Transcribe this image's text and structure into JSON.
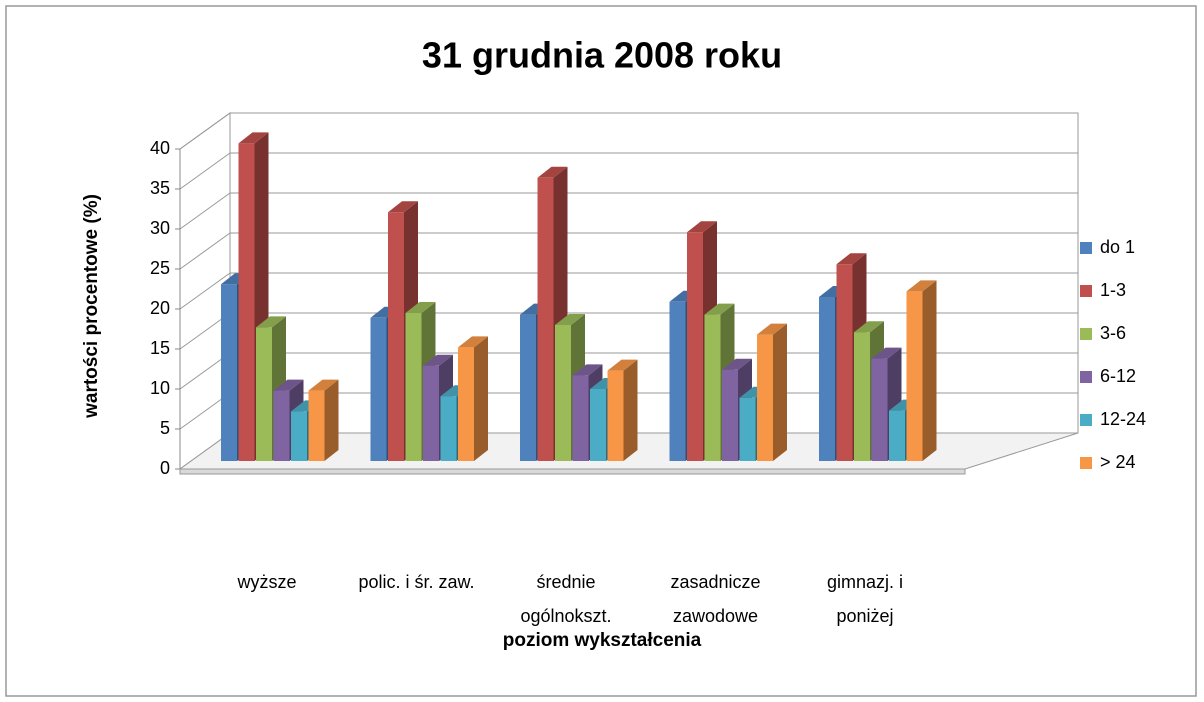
{
  "chart_data": {
    "type": "bar3d",
    "title": "31 grudnia 2008 roku",
    "x_label": "poziom wykształcenia",
    "y_label": "wartości procentowe (%)",
    "categories": [
      "wyższe",
      "polic. i śr. zaw.",
      "średnie ogólnokszt.",
      "zasadnicze zawodowe",
      "gimnazj. i poniżej"
    ],
    "series": [
      {
        "name": "do 1",
        "color": "#4f81bd",
        "values": [
          22.1,
          17.9,
          18.3,
          19.9,
          20.5
        ]
      },
      {
        "name": "1-3",
        "color": "#c0504d",
        "values": [
          39.7,
          31.1,
          35.4,
          28.6,
          24.6
        ]
      },
      {
        "name": "3-6",
        "color": "#9bbb59",
        "values": [
          16.7,
          18.5,
          17.0,
          18.3,
          16.1
        ]
      },
      {
        "name": "6-12",
        "color": "#8064a2",
        "values": [
          8.8,
          11.9,
          10.7,
          11.4,
          12.8
        ]
      },
      {
        "name": "12-24",
        "color": "#4bacc6",
        "values": [
          6.2,
          8.1,
          9.0,
          7.9,
          6.3
        ]
      },
      {
        "name": "> 24",
        "color": "#f79646",
        "values": [
          8.8,
          14.2,
          11.3,
          15.8,
          21.2
        ]
      }
    ],
    "ylim": [
      0,
      40
    ],
    "yticks": [
      0,
      5,
      10,
      15,
      20,
      25,
      30,
      35,
      40
    ],
    "grid": true,
    "legend": "right"
  }
}
